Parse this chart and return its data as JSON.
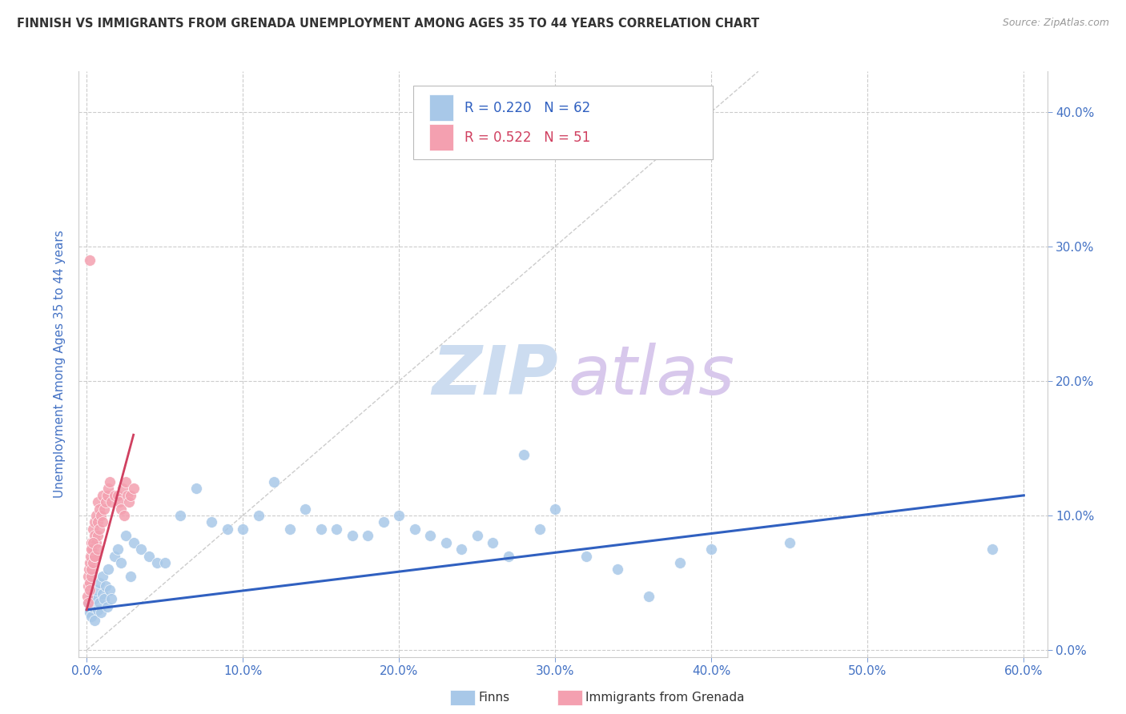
{
  "title": "FINNISH VS IMMIGRANTS FROM GRENADA UNEMPLOYMENT AMONG AGES 35 TO 44 YEARS CORRELATION CHART",
  "source": "Source: ZipAtlas.com",
  "ylabel": "Unemployment Among Ages 35 to 44 years",
  "xlim": [
    -0.005,
    0.615
  ],
  "ylim": [
    -0.005,
    0.43
  ],
  "xticks": [
    0.0,
    0.1,
    0.2,
    0.3,
    0.4,
    0.5,
    0.6
  ],
  "xticklabels": [
    "0.0%",
    "10.0%",
    "20.0%",
    "30.0%",
    "40.0%",
    "50.0%",
    "60.0%"
  ],
  "yticks": [
    0.0,
    0.1,
    0.2,
    0.3,
    0.4
  ],
  "yticklabels": [
    "0.0%",
    "10.0%",
    "20.0%",
    "30.0%",
    "40.0%"
  ],
  "blue_color": "#a8c8e8",
  "pink_color": "#f4a0b0",
  "trend_blue_color": "#3060c0",
  "trend_pink_color": "#d04060",
  "legend_blue_R": "0.220",
  "legend_blue_N": "62",
  "legend_pink_R": "0.522",
  "legend_pink_N": "51",
  "label_color": "#4472c4",
  "background_color": "#ffffff",
  "grid_color": "#cccccc",
  "title_color": "#333333",
  "finns_scatter_x": [
    0.001,
    0.002,
    0.003,
    0.003,
    0.004,
    0.005,
    0.005,
    0.006,
    0.007,
    0.008,
    0.008,
    0.009,
    0.01,
    0.01,
    0.011,
    0.012,
    0.013,
    0.014,
    0.015,
    0.016,
    0.018,
    0.02,
    0.022,
    0.025,
    0.028,
    0.03,
    0.035,
    0.04,
    0.045,
    0.05,
    0.06,
    0.07,
    0.08,
    0.09,
    0.1,
    0.11,
    0.12,
    0.13,
    0.14,
    0.15,
    0.16,
    0.17,
    0.18,
    0.19,
    0.2,
    0.21,
    0.22,
    0.23,
    0.24,
    0.25,
    0.26,
    0.27,
    0.28,
    0.29,
    0.3,
    0.32,
    0.34,
    0.36,
    0.38,
    0.4,
    0.45,
    0.58
  ],
  "finns_scatter_y": [
    0.035,
    0.028,
    0.04,
    0.025,
    0.032,
    0.038,
    0.022,
    0.045,
    0.03,
    0.035,
    0.05,
    0.028,
    0.042,
    0.055,
    0.038,
    0.048,
    0.032,
    0.06,
    0.045,
    0.038,
    0.07,
    0.075,
    0.065,
    0.085,
    0.055,
    0.08,
    0.075,
    0.07,
    0.065,
    0.065,
    0.1,
    0.12,
    0.095,
    0.09,
    0.09,
    0.1,
    0.125,
    0.09,
    0.105,
    0.09,
    0.09,
    0.085,
    0.085,
    0.095,
    0.1,
    0.09,
    0.085,
    0.08,
    0.075,
    0.085,
    0.08,
    0.07,
    0.145,
    0.09,
    0.105,
    0.07,
    0.06,
    0.04,
    0.065,
    0.075,
    0.08,
    0.075
  ],
  "grenada_scatter_x": [
    0.0005,
    0.001,
    0.001,
    0.001,
    0.0015,
    0.002,
    0.002,
    0.002,
    0.0025,
    0.003,
    0.003,
    0.003,
    0.003,
    0.004,
    0.004,
    0.004,
    0.005,
    0.005,
    0.005,
    0.006,
    0.006,
    0.007,
    0.007,
    0.007,
    0.008,
    0.008,
    0.009,
    0.01,
    0.01,
    0.011,
    0.012,
    0.013,
    0.014,
    0.015,
    0.016,
    0.018,
    0.02,
    0.021,
    0.022,
    0.023,
    0.024,
    0.025,
    0.026,
    0.027,
    0.028,
    0.03,
    0.002,
    0.003,
    0.004,
    0.005,
    0.007
  ],
  "grenada_scatter_y": [
    0.04,
    0.055,
    0.048,
    0.035,
    0.06,
    0.065,
    0.05,
    0.045,
    0.07,
    0.055,
    0.075,
    0.06,
    0.08,
    0.065,
    0.075,
    0.09,
    0.07,
    0.085,
    0.095,
    0.08,
    0.1,
    0.085,
    0.095,
    0.11,
    0.09,
    0.105,
    0.1,
    0.115,
    0.095,
    0.105,
    0.11,
    0.115,
    0.12,
    0.125,
    0.11,
    0.115,
    0.115,
    0.11,
    0.105,
    0.12,
    0.1,
    0.125,
    0.115,
    0.11,
    0.115,
    0.12,
    0.29,
    0.075,
    0.08,
    0.07,
    0.075
  ],
  "blue_trend_x": [
    0.0,
    0.6
  ],
  "blue_trend_y": [
    0.03,
    0.115
  ],
  "pink_trend_x": [
    0.0,
    0.03
  ],
  "pink_trend_y": [
    0.03,
    0.16
  ],
  "diag_line_x": [
    0.0,
    0.43
  ],
  "diag_line_y": [
    0.0,
    0.43
  ]
}
